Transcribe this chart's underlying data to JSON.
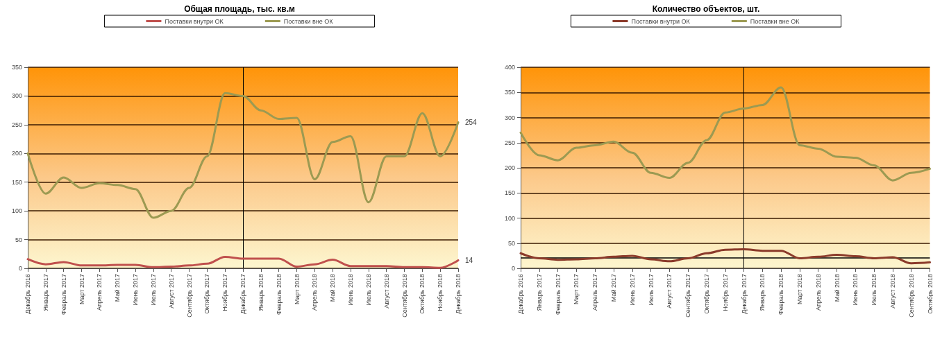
{
  "chart_data": [
    {
      "type": "line",
      "title": "Общая площадь, тыс. кв.м",
      "categories": [
        "Декабрь 2016",
        "Январь 2017",
        "Февраль 2017",
        "Март 2017",
        "Апрель 2017",
        "Май 2017",
        "Июнь 2017",
        "Июль 2017",
        "Август 2017",
        "Сентябрь 2017",
        "Октябрь 2017",
        "Ноябрь 2017",
        "Декабрь 2017",
        "Январь 2018",
        "Февраль 2018",
        "Март 2018",
        "Апрель 2018",
        "Май 2018",
        "Июнь 2018",
        "Июль 2018",
        "Август 2018",
        "Сентябрь 2018",
        "Октябрь 2018",
        "Ноябрь 2018",
        "Декабрь 2018"
      ],
      "series": [
        {
          "name": "Поставки внутри ОК",
          "color": "#c0504d",
          "values": [
            16,
            7,
            11,
            5,
            5,
            6,
            6,
            2,
            3,
            5,
            8,
            20,
            17,
            17,
            17,
            3,
            7,
            15,
            4,
            4,
            4,
            2,
            2,
            1,
            14
          ],
          "value_labels": [
            null,
            null,
            null,
            null,
            null,
            null,
            null,
            null,
            null,
            null,
            null,
            null,
            null,
            null,
            null,
            null,
            null,
            null,
            null,
            null,
            null,
            null,
            null,
            null,
            "14"
          ]
        },
        {
          "name": "Поставки вне ОК",
          "color": "#9c9a52",
          "values": [
            200,
            130,
            158,
            140,
            148,
            145,
            138,
            88,
            100,
            140,
            195,
            305,
            300,
            275,
            260,
            262,
            155,
            220,
            230,
            115,
            195,
            195,
            270,
            195,
            254
          ],
          "value_labels": [
            null,
            null,
            null,
            null,
            null,
            null,
            null,
            null,
            null,
            null,
            null,
            null,
            null,
            null,
            null,
            null,
            null,
            null,
            null,
            null,
            null,
            null,
            null,
            null,
            "254"
          ]
        }
      ],
      "ylim": [
        0,
        350
      ],
      "yticks": [
        0,
        50,
        100,
        150,
        200,
        250,
        300,
        350
      ],
      "grid": "y",
      "legend": "top",
      "marker": "none",
      "ref_lines": [
        {
          "axis": "x",
          "value": "Декабрь 2017"
        }
      ]
    },
    {
      "type": "line",
      "title": "Количество объектов, шт.",
      "categories": [
        "Декабрь 2016",
        "Январь 2017",
        "Февраль 2017",
        "Март 2017",
        "Апрель 2017",
        "Май 2017",
        "Июнь 2017",
        "Июль 2017",
        "Август 2017",
        "Сентябрь 2017",
        "Октябрь 2017",
        "Ноябрь 2017",
        "Декабрь 2017",
        "Январь 2018",
        "Февраль 2018",
        "Март 2018",
        "Апрель 2018",
        "Май 2018",
        "Июнь 2018",
        "Июль 2018",
        "Август 2018",
        "Сентябрь 2018",
        "Октябрь 2018"
      ],
      "series": [
        {
          "name": "Поставки внутри ОК",
          "color": "#8b3a2a",
          "values": [
            30,
            20,
            17,
            18,
            20,
            23,
            25,
            18,
            14,
            20,
            30,
            37,
            38,
            35,
            35,
            20,
            23,
            27,
            24,
            20,
            22,
            10,
            12
          ]
        },
        {
          "name": "Поставки вне ОК",
          "color": "#9c9a52",
          "values": [
            270,
            225,
            215,
            240,
            245,
            252,
            230,
            190,
            180,
            210,
            255,
            310,
            318,
            325,
            360,
            245,
            238,
            222,
            220,
            205,
            175,
            190,
            198
          ]
        }
      ],
      "ylim": [
        0,
        400
      ],
      "yticks": [
        0,
        50,
        100,
        150,
        200,
        250,
        300,
        350,
        400
      ],
      "grid": "y",
      "legend": "top",
      "marker": "none",
      "ref_lines": [
        {
          "axis": "x",
          "value": "Декабрь 2017"
        },
        {
          "axis": "y",
          "value": 21
        }
      ]
    }
  ]
}
